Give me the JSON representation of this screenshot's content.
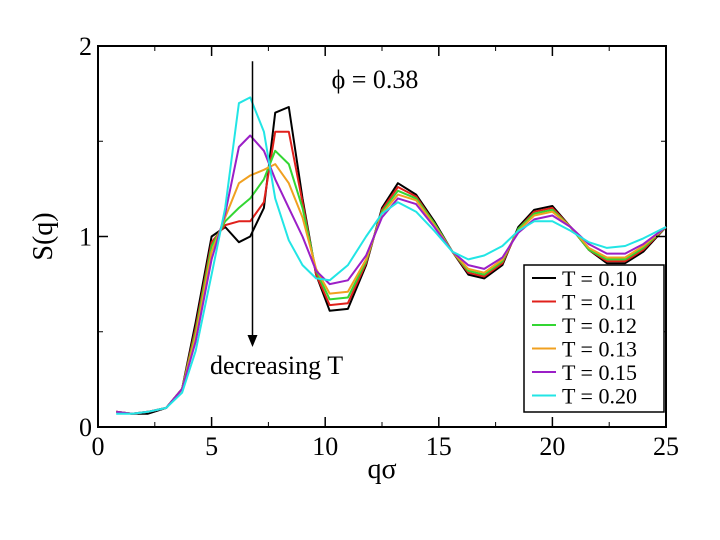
{
  "chart_data": {
    "type": "line",
    "title": "",
    "xlabel": "qσ",
    "ylabel": "S(q)",
    "xlim": [
      0,
      25
    ],
    "ylim": [
      0,
      2
    ],
    "x_ticks": [
      0,
      5,
      10,
      15,
      20,
      25
    ],
    "y_ticks": [
      0,
      1,
      2
    ],
    "grid": false,
    "legend_position": "bottom-right",
    "annotations": [
      {
        "id": "phi",
        "text": "ϕ = 0.38"
      },
      {
        "id": "decreasing",
        "text": "decreasing T",
        "arrow_from": [
          6.8,
          1.92
        ],
        "arrow_to": [
          6.8,
          0.42
        ]
      }
    ],
    "x": [
      0.8,
      1.5,
      2.2,
      3.0,
      3.7,
      4.3,
      5.0,
      5.6,
      6.2,
      6.7,
      7.3,
      7.8,
      8.4,
      9.0,
      9.6,
      10.2,
      11.0,
      11.8,
      12.5,
      13.2,
      14.0,
      14.8,
      15.6,
      16.3,
      17.0,
      17.8,
      18.5,
      19.2,
      20.0,
      20.8,
      21.6,
      22.4,
      23.2,
      24.0,
      25.0
    ],
    "series": [
      {
        "name": "T = 0.10",
        "color": "#000000",
        "values": [
          0.08,
          0.07,
          0.07,
          0.1,
          0.2,
          0.55,
          1.0,
          1.05,
          0.97,
          1.0,
          1.15,
          1.65,
          1.68,
          1.2,
          0.8,
          0.61,
          0.62,
          0.85,
          1.15,
          1.28,
          1.22,
          1.08,
          0.92,
          0.8,
          0.78,
          0.85,
          1.05,
          1.14,
          1.16,
          1.05,
          0.93,
          0.86,
          0.86,
          0.92,
          1.05
        ]
      },
      {
        "name": "T = 0.11",
        "color": "#e0201b",
        "values": [
          0.08,
          0.07,
          0.08,
          0.1,
          0.2,
          0.52,
          0.97,
          1.06,
          1.08,
          1.08,
          1.18,
          1.55,
          1.55,
          1.18,
          0.8,
          0.64,
          0.65,
          0.86,
          1.14,
          1.26,
          1.21,
          1.07,
          0.92,
          0.81,
          0.79,
          0.86,
          1.04,
          1.13,
          1.15,
          1.05,
          0.93,
          0.87,
          0.87,
          0.93,
          1.05
        ]
      },
      {
        "name": "T = 0.12",
        "color": "#33d633",
        "values": [
          0.08,
          0.07,
          0.08,
          0.1,
          0.2,
          0.5,
          0.95,
          1.08,
          1.15,
          1.2,
          1.3,
          1.45,
          1.38,
          1.15,
          0.82,
          0.67,
          0.68,
          0.87,
          1.13,
          1.24,
          1.2,
          1.07,
          0.92,
          0.82,
          0.8,
          0.87,
          1.04,
          1.12,
          1.14,
          1.05,
          0.93,
          0.88,
          0.88,
          0.94,
          1.05
        ]
      },
      {
        "name": "T = 0.13",
        "color": "#f0a020",
        "values": [
          0.08,
          0.07,
          0.08,
          0.1,
          0.2,
          0.48,
          0.92,
          1.1,
          1.28,
          1.32,
          1.35,
          1.38,
          1.28,
          1.1,
          0.83,
          0.7,
          0.71,
          0.88,
          1.12,
          1.22,
          1.19,
          1.06,
          0.92,
          0.83,
          0.81,
          0.88,
          1.03,
          1.11,
          1.13,
          1.05,
          0.94,
          0.89,
          0.89,
          0.95,
          1.05
        ]
      },
      {
        "name": "T = 0.15",
        "color": "#9b1fc7",
        "values": [
          0.08,
          0.07,
          0.08,
          0.1,
          0.2,
          0.45,
          0.88,
          1.12,
          1.47,
          1.53,
          1.45,
          1.3,
          1.15,
          1.0,
          0.82,
          0.75,
          0.77,
          0.9,
          1.1,
          1.2,
          1.17,
          1.05,
          0.92,
          0.85,
          0.83,
          0.89,
          1.02,
          1.09,
          1.11,
          1.05,
          0.96,
          0.91,
          0.91,
          0.96,
          1.05
        ]
      },
      {
        "name": "T = 0.20",
        "color": "#22e5e5",
        "values": [
          0.07,
          0.07,
          0.08,
          0.1,
          0.18,
          0.4,
          0.8,
          1.15,
          1.7,
          1.73,
          1.55,
          1.2,
          0.98,
          0.85,
          0.78,
          0.77,
          0.85,
          1.0,
          1.12,
          1.18,
          1.13,
          1.03,
          0.92,
          0.88,
          0.9,
          0.95,
          1.03,
          1.08,
          1.08,
          1.03,
          0.97,
          0.94,
          0.95,
          0.99,
          1.05
        ]
      }
    ]
  }
}
